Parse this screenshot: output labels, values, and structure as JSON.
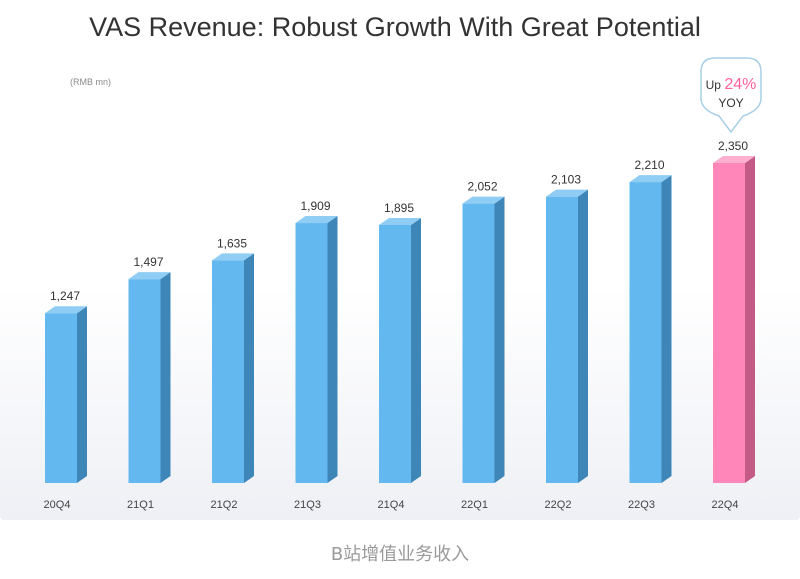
{
  "title": "VAS Revenue: Robust Growth With Great Potential",
  "unit_label": "(RMB mn)",
  "caption": "B站增值业务收入",
  "callout": {
    "prefix": "Up",
    "highlight": "24%",
    "suffix": "YOY"
  },
  "colors": {
    "bar_front": "#62b8ef",
    "bar_side": "#3f86b8",
    "bar_top": "#8fcdf4",
    "highlight_front": "#ff86b8",
    "highlight_side": "#c45a86",
    "highlight_top": "#ffb0d0",
    "accent_text": "#ff5f9e"
  },
  "chart_data": {
    "type": "bar",
    "categories": [
      "20Q4",
      "21Q1",
      "21Q2",
      "21Q3",
      "21Q4",
      "22Q1",
      "22Q2",
      "22Q3",
      "22Q4"
    ],
    "values": [
      1247,
      1497,
      1635,
      1909,
      1895,
      2052,
      2103,
      2210,
      2350
    ],
    "value_labels": [
      "1,247",
      "1,497",
      "1,635",
      "1,909",
      "1,895",
      "2,052",
      "2,103",
      "2,210",
      "2,350"
    ],
    "ylabel": "(RMB mn)",
    "ylim": [
      0,
      2350
    ],
    "highlight_index": 8,
    "grid": false,
    "legend": "none"
  }
}
